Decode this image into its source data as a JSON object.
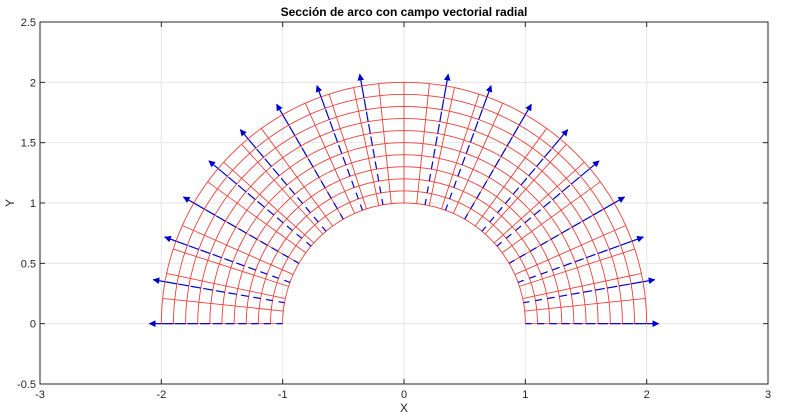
{
  "chart_data": {
    "type": "vector-field",
    "title": "Sección de arco con campo vectorial radial",
    "xlabel": "X",
    "ylabel": "Y",
    "xlim": [
      -3,
      3
    ],
    "ylim": [
      -0.5,
      2.5
    ],
    "xticks": [
      -3,
      -2,
      -1,
      0,
      1,
      2,
      3
    ],
    "yticks": [
      -0.5,
      0,
      0.5,
      1,
      1.5,
      2,
      2.5
    ],
    "xtick_labels": [
      "-3",
      "-2",
      "-1",
      "0",
      "1",
      "2",
      "3"
    ],
    "ytick_labels": [
      "-0.5",
      "0",
      "0.5",
      "1",
      "1.5",
      "2",
      "2.5"
    ],
    "grid": true,
    "mesh": {
      "shape": "half-annulus",
      "inner_radius": 1,
      "outer_radius": 2,
      "theta_range_deg": [
        0,
        180
      ],
      "radial_divisions": 10,
      "angular_divisions": 30,
      "color": "#e8423c"
    },
    "vector_field": {
      "kind": "radial",
      "color": "#0000cc",
      "radii": [
        1.0,
        1.1,
        1.2,
        1.3,
        1.4,
        1.5,
        1.6,
        1.7,
        1.8,
        1.9,
        2.0
      ],
      "angles_deg": [
        0,
        10,
        20,
        30,
        40,
        50,
        60,
        70,
        80,
        90,
        100,
        110,
        120,
        130,
        140,
        150,
        160,
        170,
        180
      ],
      "skip_angles_deg": [
        90
      ],
      "max_tip_radius": 2.1,
      "scale_per_radius": 0.05
    },
    "colors": {
      "axes": "#262626",
      "grid": "#e6e6e6",
      "mesh": "#e8423c",
      "vectors": "#0000cc"
    }
  }
}
